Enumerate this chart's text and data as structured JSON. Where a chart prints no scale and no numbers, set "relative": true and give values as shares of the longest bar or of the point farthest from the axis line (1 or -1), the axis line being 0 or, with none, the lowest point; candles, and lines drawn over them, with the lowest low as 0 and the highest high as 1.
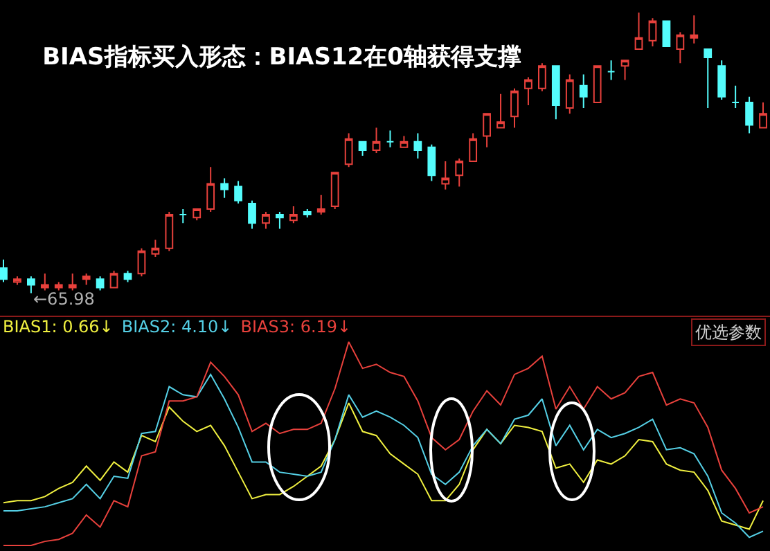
{
  "chart_data": [
    {
      "type": "candlestick",
      "title": "BIAS指标买入形态：BIAS12在0轴获得支撑",
      "relative": true,
      "categories": [
        null,
        null,
        null,
        null,
        null,
        null,
        null,
        null,
        null,
        null,
        null,
        null,
        null,
        null,
        null,
        null,
        null,
        null,
        null,
        null,
        null,
        null,
        null,
        null,
        null,
        null,
        null,
        null,
        null,
        null,
        null,
        null,
        null,
        null,
        null,
        null,
        null,
        null,
        null,
        null,
        null,
        null,
        null,
        null,
        null,
        null,
        null,
        null,
        null,
        null,
        null,
        null,
        null,
        null,
        null,
        null
      ],
      "ohlc": [
        [
          0.09,
          0.12,
          0.04,
          0.05
        ],
        [
          0.04,
          0.06,
          0.03,
          0.05
        ],
        [
          0.05,
          0.06,
          0,
          0.03
        ],
        [
          0.02,
          0.07,
          0.01,
          0.03
        ],
        [
          0.02,
          0.04,
          0.01,
          0.03
        ],
        [
          0.02,
          0.07,
          0.01,
          0.03
        ],
        [
          0.05,
          0.07,
          0.03,
          0.06
        ],
        [
          0.05,
          0.06,
          0.01,
          0.02
        ],
        [
          0.02,
          0.08,
          0.02,
          0.07
        ],
        [
          0.07,
          0.08,
          0.04,
          0.05
        ],
        [
          0.07,
          0.16,
          0.06,
          0.15
        ],
        [
          0.14,
          0.19,
          0.13,
          0.16
        ],
        [
          0.16,
          0.29,
          0.15,
          0.28
        ],
        [
          0.28,
          0.3,
          0.25,
          0.28
        ],
        [
          0.27,
          0.3,
          0.26,
          0.3
        ],
        [
          0.3,
          0.45,
          0.29,
          0.39
        ],
        [
          0.39,
          0.41,
          0.34,
          0.37
        ],
        [
          0.38,
          0.4,
          0.32,
          0.33
        ],
        [
          0.32,
          0.33,
          0.23,
          0.25
        ],
        [
          0.25,
          0.29,
          0.23,
          0.28
        ],
        [
          0.28,
          0.29,
          0.23,
          0.27
        ],
        [
          0.26,
          0.31,
          0.25,
          0.28
        ],
        [
          0.29,
          0.3,
          0.27,
          0.28
        ],
        [
          0.29,
          0.35,
          0.28,
          0.3
        ],
        [
          0.31,
          0.43,
          0.3,
          0.43
        ],
        [
          0.46,
          0.57,
          0.45,
          0.55
        ],
        [
          0.54,
          0.54,
          0.49,
          0.51
        ],
        [
          0.51,
          0.59,
          0.5,
          0.54
        ],
        [
          0.54,
          0.58,
          0.52,
          0.54
        ],
        [
          0.52,
          0.56,
          0.52,
          0.54
        ],
        [
          0.54,
          0.57,
          0.48,
          0.51
        ],
        [
          0.52,
          0.53,
          0.4,
          0.42
        ],
        [
          0.39,
          0.47,
          0.37,
          0.41
        ],
        [
          0.42,
          0.48,
          0.38,
          0.47
        ],
        [
          0.47,
          0.57,
          0.47,
          0.55
        ],
        [
          0.56,
          0.64,
          0.52,
          0.64
        ],
        [
          0.59,
          0.71,
          0.59,
          0.61
        ],
        [
          0.63,
          0.73,
          0.59,
          0.72
        ],
        [
          0.73,
          0.77,
          0.67,
          0.76
        ],
        [
          0.73,
          0.82,
          0.72,
          0.81
        ],
        [
          0.81,
          0.81,
          0.62,
          0.67
        ],
        [
          0.66,
          0.78,
          0.64,
          0.76
        ],
        [
          0.74,
          0.78,
          0.66,
          0.7
        ],
        [
          0.68,
          0.81,
          0.68,
          0.81
        ],
        [
          0.79,
          0.83,
          0.76,
          0.79
        ],
        [
          0.81,
          0.83,
          0.76,
          0.83
        ],
        [
          0.87,
          1,
          0.87,
          0.91
        ],
        [
          0.9,
          0.98,
          0.88,
          0.97
        ],
        [
          0.97,
          0.97,
          0.88,
          0.88
        ],
        [
          0.87,
          0.93,
          0.82,
          0.92
        ],
        [
          0.91,
          0.99,
          0.89,
          0.92
        ],
        [
          0.87,
          0.87,
          0.66,
          0.84
        ],
        [
          0.81,
          0.83,
          0.69,
          0.7
        ],
        [
          0.68,
          0.74,
          0.66,
          0.68
        ],
        [
          0.68,
          0.7,
          0.57,
          0.6
        ],
        [
          0.59,
          0.68,
          0.59,
          0.64
        ]
      ],
      "colors": [
        "#54fcfc",
        "#e8413c",
        "#54fcfc",
        "#e8413c",
        "#e8413c",
        "#e8413c",
        "#e8413c",
        "#54fcfc",
        "#e8413c",
        "#54fcfc",
        "#e8413c",
        "#e8413c",
        "#e8413c",
        "#54fcfc",
        "#e8413c",
        "#e8413c",
        "#54fcfc",
        "#54fcfc",
        "#54fcfc",
        "#e8413c",
        "#54fcfc",
        "#e8413c",
        "#54fcfc",
        "#e8413c",
        "#e8413c",
        "#e8413c",
        "#54fcfc",
        "#e8413c",
        "#54fcfc",
        "#e8413c",
        "#54fcfc",
        "#54fcfc",
        "#e8413c",
        "#e8413c",
        "#e8413c",
        "#e8413c",
        "#e8413c",
        "#e8413c",
        "#e8413c",
        "#e8413c",
        "#54fcfc",
        "#e8413c",
        "#54fcfc",
        "#e8413c",
        "#54fcfc",
        "#e8413c",
        "#e8413c",
        "#e8413c",
        "#54fcfc",
        "#e8413c",
        "#e8413c",
        "#54fcfc",
        "#54fcfc",
        "#54fcfc",
        "#54fcfc",
        "#e8413c"
      ],
      "annotations": [
        {
          "text": "←65.98",
          "y": 0
        }
      ]
    },
    {
      "type": "line",
      "relative": true,
      "categories": [
        null,
        null,
        null,
        null,
        null,
        null,
        null,
        null,
        null,
        null,
        null,
        null,
        null,
        null,
        null,
        null,
        null,
        null,
        null,
        null,
        null,
        null,
        null,
        null,
        null,
        null,
        null,
        null,
        null,
        null,
        null,
        null,
        null,
        null,
        null,
        null,
        null,
        null,
        null,
        null,
        null,
        null,
        null,
        null,
        null,
        null,
        null,
        null,
        null,
        null,
        null,
        null,
        null,
        null,
        null,
        null
      ],
      "series": [
        {
          "name": "BIAS1: 0.66↓",
          "color": "#f0f040",
          "values": [
            0.21,
            0.22,
            0.22,
            0.24,
            0.28,
            0.31,
            0.39,
            0.32,
            0.41,
            0.36,
            0.54,
            0.51,
            0.68,
            0.61,
            0.56,
            0.59,
            0.49,
            0.36,
            0.23,
            0.25,
            0.25,
            0.29,
            0.34,
            0.39,
            0.52,
            0.7,
            0.56,
            0.54,
            0.45,
            0.4,
            0.35,
            0.22,
            0.22,
            0.3,
            0.47,
            0.57,
            0.5,
            0.59,
            0.58,
            0.56,
            0.38,
            0.4,
            0.31,
            0.42,
            0.4,
            0.44,
            0.52,
            0.51,
            0.4,
            0.37,
            0.36,
            0.27,
            0.12,
            0.1,
            0.08,
            0.22
          ]
        },
        {
          "name": "BIAS2: 4.10↓",
          "color": "#55d0e6",
          "values": [
            0.17,
            0.17,
            0.18,
            0.19,
            0.21,
            0.23,
            0.3,
            0.23,
            0.34,
            0.33,
            0.55,
            0.56,
            0.78,
            0.74,
            0.73,
            0.84,
            0.72,
            0.58,
            0.41,
            0.41,
            0.36,
            0.35,
            0.34,
            0.36,
            0.52,
            0.74,
            0.63,
            0.66,
            0.63,
            0.59,
            0.53,
            0.35,
            0.3,
            0.36,
            0.49,
            0.57,
            0.5,
            0.62,
            0.64,
            0.72,
            0.49,
            0.59,
            0.47,
            0.57,
            0.53,
            0.55,
            0.58,
            0.62,
            0.47,
            0.48,
            0.45,
            0.34,
            0.16,
            0.11,
            0.04,
            0.07
          ]
        },
        {
          "name": "BIAS3: 6.19↓",
          "color": "#e8413c",
          "values": [
            0,
            0,
            0,
            0.02,
            0.03,
            0.06,
            0.15,
            0.09,
            0.22,
            0.19,
            0.44,
            0.46,
            0.71,
            0.71,
            0.73,
            0.9,
            0.83,
            0.74,
            0.56,
            0.6,
            0.55,
            0.57,
            0.57,
            0.6,
            0.77,
            1,
            0.87,
            0.89,
            0.85,
            0.83,
            0.71,
            0.53,
            0.47,
            0.52,
            0.66,
            0.76,
            0.69,
            0.84,
            0.87,
            0.93,
            0.67,
            0.78,
            0.67,
            0.78,
            0.72,
            0.75,
            0.83,
            0.85,
            0.69,
            0.72,
            0.7,
            0.58,
            0.37,
            0.28,
            0.16,
            0.19
          ]
        }
      ],
      "annotations": [
        "优选参数"
      ]
    }
  ]
}
